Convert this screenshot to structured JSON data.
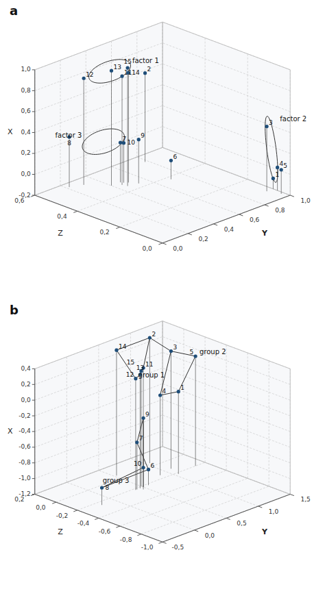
{
  "chart_data": [
    {
      "type": "scatter3d",
      "title": "a",
      "point_labels": [
        "1",
        "2",
        "3",
        "4",
        "5",
        "6",
        "7",
        "8",
        "9",
        "10",
        "11",
        "12",
        "13",
        "14",
        "15"
      ],
      "x": [
        1.0,
        0.78,
        0.95,
        1.0,
        0.98,
        0.7,
        0.47,
        0.22,
        0.53,
        0.48,
        0.45,
        0.3,
        0.4,
        0.5,
        0.46
      ],
      "y": [
        0.08,
        0.55,
        0.08,
        0.06,
        0.03,
        0.38,
        0.48,
        0.57,
        0.43,
        0.47,
        0.46,
        0.55,
        0.48,
        0.46,
        0.44
      ],
      "z": [
        -0.1,
        0.65,
        0.42,
        0.02,
        0.03,
        -0.02,
        0.18,
        0.28,
        0.22,
        0.18,
        0.84,
        0.82,
        0.9,
        0.85,
        0.93
      ],
      "xlabel": "Y",
      "ylabel": "Z",
      "zlabel": "X",
      "xlim": [
        0.0,
        1.0
      ],
      "ylim": [
        0.0,
        0.6
      ],
      "zlim": [
        -0.2,
        1.0
      ],
      "xticks": [
        {
          "value": 0.0,
          "label": "0,0"
        },
        {
          "value": 0.2,
          "label": "0,2"
        },
        {
          "value": 0.4,
          "label": "0,4"
        },
        {
          "value": 0.6,
          "label": "0,6"
        },
        {
          "value": 0.8,
          "label": "0,8"
        },
        {
          "value": 1.0,
          "label": "1,0"
        }
      ],
      "yticks": [
        {
          "value": 0.0,
          "label": "0,0"
        },
        {
          "value": 0.2,
          "label": "0,2"
        },
        {
          "value": 0.4,
          "label": "0,4"
        },
        {
          "value": 0.6,
          "label": "0,6"
        }
      ],
      "zticks": [
        {
          "value": -0.2,
          "label": "-0,2"
        },
        {
          "value": 0.0,
          "label": "0,0"
        },
        {
          "value": 0.2,
          "label": "0,2"
        },
        {
          "value": 0.4,
          "label": "0,4"
        },
        {
          "value": 0.6,
          "label": "0,6"
        },
        {
          "value": 0.8,
          "label": "0,8"
        },
        {
          "value": 1.0,
          "label": "1,0"
        }
      ],
      "grid": true,
      "annotations": [
        {
          "text": "factor 1",
          "x": 0.43,
          "y": 0.4,
          "z": 1.04
        },
        {
          "text": "factor 2",
          "x": 0.97,
          "y": 0.03,
          "z": 0.52
        },
        {
          "text": "factor 3",
          "x": 0.16,
          "y": 0.6,
          "z": 0.3
        }
      ],
      "ellipses": [
        {
          "center": [
            0.42,
            0.5,
            0.87
          ],
          "radii": [
            0.16,
            0.021,
            0.07
          ]
        },
        {
          "center": [
            0.97,
            0.07,
            0.2
          ],
          "radii": [
            0.035,
            0.021,
            0.3
          ]
        },
        {
          "center": [
            0.37,
            0.5,
            0.22
          ],
          "radii": [
            0.16,
            0.024,
            0.08
          ]
        }
      ]
    },
    {
      "type": "scatter3d",
      "title": "b",
      "point_labels": [
        "1",
        "2",
        "3",
        "4",
        "5",
        "6",
        "7",
        "8",
        "9",
        "10",
        "11",
        "12",
        "13",
        "14",
        "15"
      ],
      "x": [
        1.05,
        1.05,
        1.1,
        0.88,
        1.35,
        0.58,
        0.4,
        -0.2,
        0.5,
        0.45,
        0.5,
        0.38,
        0.45,
        0.53,
        0.5
      ],
      "y": [
        -0.22,
        0.05,
        -0.12,
        -0.15,
        -0.2,
        -0.22,
        -0.22,
        -0.25,
        -0.22,
        -0.25,
        -0.22,
        -0.22,
        -0.22,
        0.05,
        -0.2
      ],
      "z": [
        -0.15,
        0.4,
        0.3,
        -0.18,
        0.2,
        -1.0,
        -0.6,
        -0.98,
        -0.32,
        -0.92,
        0.32,
        0.22,
        0.25,
        0.4,
        0.27
      ],
      "xlabel": "Y",
      "ylabel": "Z",
      "zlabel": "X",
      "xlim": [
        -0.5,
        1.5
      ],
      "ylim": [
        -1.0,
        0.2
      ],
      "zlim": [
        -1.2,
        0.4
      ],
      "xticks": [
        {
          "value": -0.5,
          "label": "-0,5"
        },
        {
          "value": 0.0,
          "label": "0,0"
        },
        {
          "value": 0.5,
          "label": "0,5"
        },
        {
          "value": 1.0,
          "label": "1,0"
        },
        {
          "value": 1.5,
          "label": "1,5"
        }
      ],
      "yticks": [
        {
          "value": -1.0,
          "label": "-1,0"
        },
        {
          "value": -0.8,
          "label": "-0,8"
        },
        {
          "value": -0.6,
          "label": "-0,6"
        },
        {
          "value": -0.4,
          "label": "-0,4"
        },
        {
          "value": -0.2,
          "label": "-0,2"
        },
        {
          "value": 0.0,
          "label": "0,0"
        },
        {
          "value": 0.2,
          "label": "0,2"
        }
      ],
      "zticks": [
        {
          "value": -1.2,
          "label": "-1,2"
        },
        {
          "value": -1.0,
          "label": "-1,0"
        },
        {
          "value": -0.8,
          "label": "-0,8"
        },
        {
          "value": -0.6,
          "label": "-0,6"
        },
        {
          "value": -0.4,
          "label": "-0,4"
        },
        {
          "value": -0.2,
          "label": "-0,2"
        },
        {
          "value": 0.0,
          "label": "0,0"
        },
        {
          "value": 0.2,
          "label": "0,2"
        },
        {
          "value": 0.4,
          "label": "0,4"
        }
      ],
      "grid": true,
      "annotations": [
        {
          "text": "group 1",
          "x": 0.37,
          "y": -0.25,
          "z": 0.28
        },
        {
          "text": "group 2",
          "x": 1.38,
          "y": -0.22,
          "z": 0.25
        },
        {
          "text": "group 3",
          "x": -0.22,
          "y": -0.27,
          "z": -0.88
        }
      ],
      "polygons": [
        [
          "14",
          "2",
          "11",
          "15",
          "13",
          "12",
          "14"
        ],
        [
          "2",
          "3",
          "5",
          "1",
          "4",
          "3"
        ],
        [
          "8",
          "10",
          "9",
          "7",
          "6",
          "8"
        ]
      ]
    }
  ]
}
